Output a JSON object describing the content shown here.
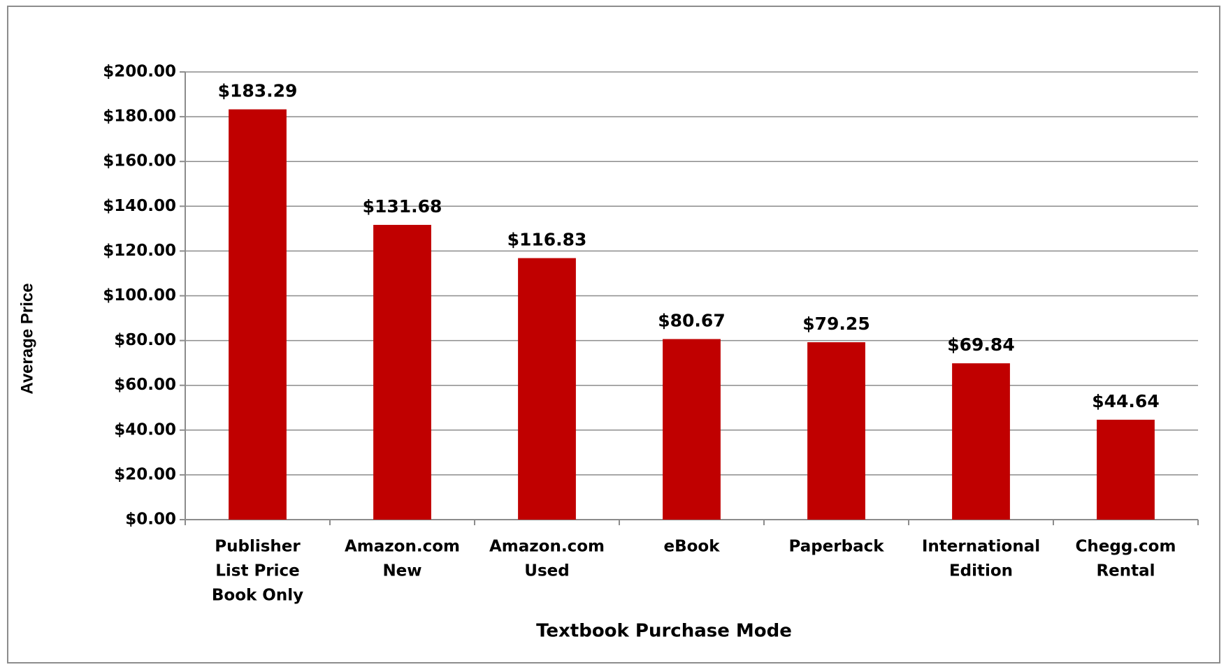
{
  "chart_data": {
    "type": "bar",
    "x_label": "Textbook Purchase Mode",
    "y_label": "Average Price",
    "categories": [
      [
        "Publisher",
        "List Price",
        "Book Only"
      ],
      [
        "Amazon.com",
        "New"
      ],
      [
        "Amazon.com",
        "Used"
      ],
      [
        "eBook"
      ],
      [
        "Paperback"
      ],
      [
        "International",
        "Edition"
      ],
      [
        "Chegg.com",
        "Rental"
      ]
    ],
    "values": [
      183.29,
      131.68,
      116.83,
      80.67,
      79.25,
      69.84,
      44.64
    ],
    "value_labels": [
      "$183.29",
      "$131.68",
      "$116.83",
      "$80.67",
      "$79.25",
      "$69.84",
      "$44.64"
    ],
    "color": "#c00000",
    "ylim": [
      0,
      200
    ],
    "yticks": [
      {
        "value": 0,
        "label": "$0.00"
      },
      {
        "value": 20,
        "label": "$20.00"
      },
      {
        "value": 40,
        "label": "$40.00"
      },
      {
        "value": 60,
        "label": "$60.00"
      },
      {
        "value": 80,
        "label": "$80.00"
      },
      {
        "value": 100,
        "label": "$100.00"
      },
      {
        "value": 120,
        "label": "$120.00"
      },
      {
        "value": 140,
        "label": "$140.00"
      },
      {
        "value": 160,
        "label": "$160.00"
      },
      {
        "value": 180,
        "label": "$180.00"
      },
      {
        "value": 200,
        "label": "$200.00"
      }
    ],
    "grid": true
  }
}
